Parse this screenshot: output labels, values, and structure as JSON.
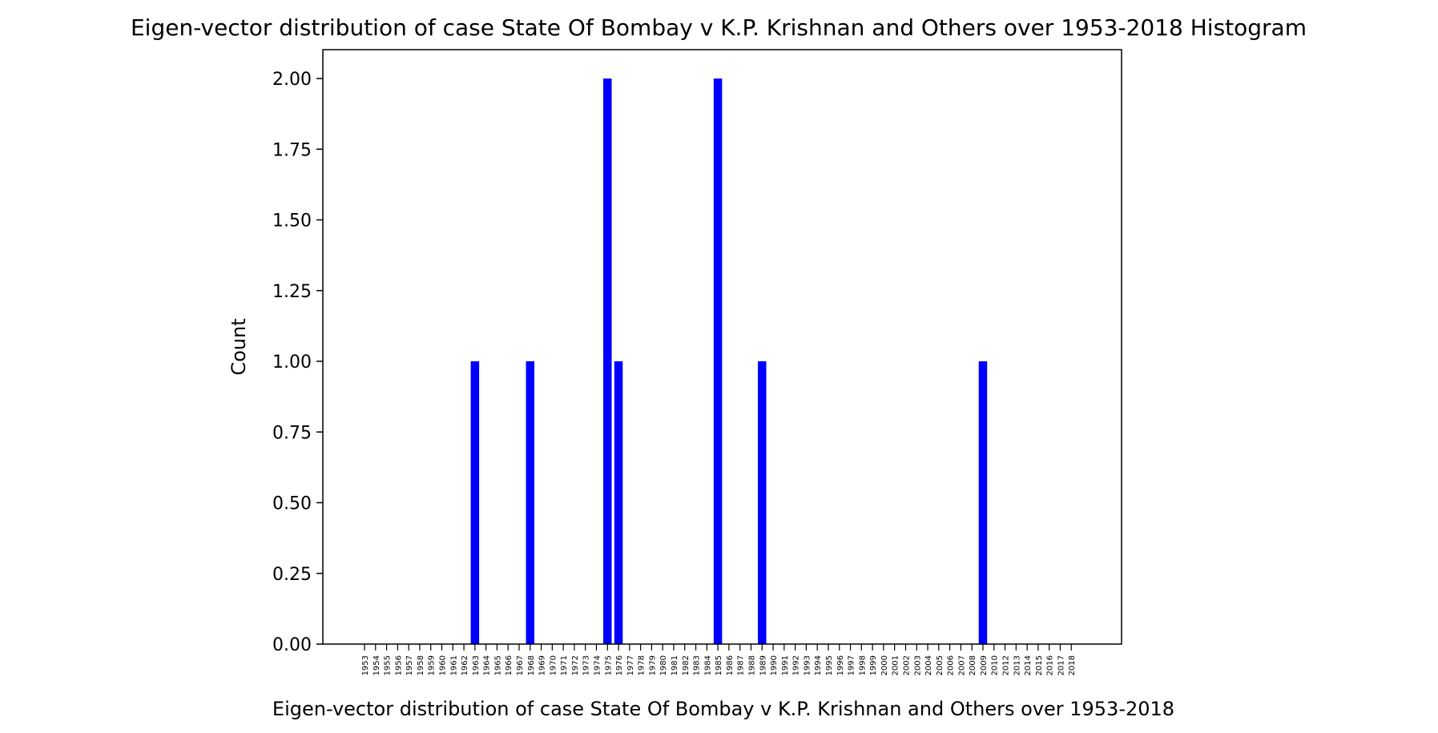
{
  "chart_data": {
    "type": "bar",
    "title": "Eigen-vector distribution of case State Of Bombay v K.P. Krishnan and Others over 1953-2018 Histogram",
    "xlabel": "Eigen-vector distribution of case State Of Bombay v K.P. Krishnan and Others over 1953-2018",
    "ylabel": "Count",
    "categories": [
      "1953",
      "1954",
      "1955",
      "1956",
      "1957",
      "1958",
      "1959",
      "1960",
      "1961",
      "1962",
      "1963",
      "1964",
      "1965",
      "1966",
      "1967",
      "1968",
      "1969",
      "1970",
      "1971",
      "1972",
      "1973",
      "1974",
      "1975",
      "1976",
      "1977",
      "1978",
      "1979",
      "1980",
      "1981",
      "1982",
      "1983",
      "1984",
      "1985",
      "1986",
      "1987",
      "1988",
      "1989",
      "1990",
      "1991",
      "1992",
      "1993",
      "1994",
      "1995",
      "1996",
      "1997",
      "1998",
      "1999",
      "2000",
      "2001",
      "2002",
      "2003",
      "2004",
      "2005",
      "2006",
      "2007",
      "2008",
      "2009",
      "2010",
      "2012",
      "2013",
      "2014",
      "2015",
      "2016",
      "2017",
      "2018"
    ],
    "values": [
      0,
      0,
      0,
      0,
      0,
      0,
      0,
      0,
      0,
      0,
      1,
      0,
      0,
      0,
      0,
      1,
      0,
      0,
      0,
      0,
      0,
      0,
      2,
      1,
      0,
      0,
      0,
      0,
      0,
      0,
      0,
      0,
      2,
      0,
      0,
      0,
      1,
      0,
      0,
      0,
      0,
      0,
      0,
      0,
      0,
      0,
      0,
      0,
      0,
      0,
      0,
      0,
      0,
      0,
      0,
      0,
      1,
      0,
      0,
      0,
      0,
      0,
      0,
      0,
      0
    ],
    "ylim": [
      0,
      2.1
    ],
    "yticks": [
      "0.00",
      "0.25",
      "0.50",
      "0.75",
      "1.00",
      "1.25",
      "1.50",
      "1.75",
      "2.00"
    ],
    "bar_color": "#0000ff",
    "grid": false,
    "legend": "none"
  }
}
